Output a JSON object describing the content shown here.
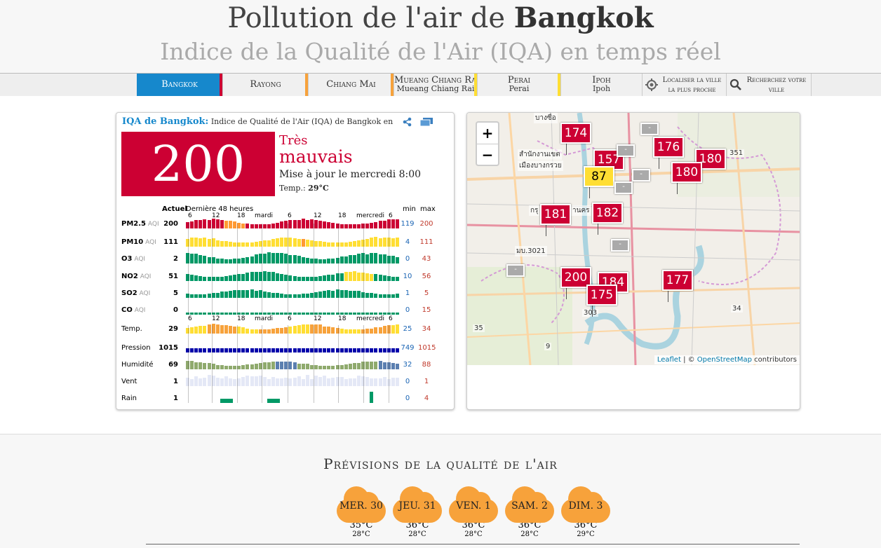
{
  "header": {
    "title_prefix": "Pollution de l'air de ",
    "title_city": "Bangkok",
    "subtitle": "Indice de la Qualité de l'Air (IQA) en temps réel"
  },
  "tabs": [
    {
      "label": "Bangkok",
      "sub": "",
      "color": "#cc0033",
      "active": true
    },
    {
      "label": "Rayong",
      "sub": "",
      "color": "#f7a23b",
      "active": false
    },
    {
      "label": "Chiang Mai",
      "sub": "",
      "color": "#f7a23b",
      "active": false
    },
    {
      "label": "Mueang Chiang Rai",
      "sub": "Mueang Chiang Rai",
      "color": "#ffde33",
      "active": false
    },
    {
      "label": "Perai",
      "sub": "Perai",
      "color": "#ffde33",
      "active": false
    },
    {
      "label": "Ipoh",
      "sub": "Ipoh",
      "color": "#ffde33",
      "active": false
    }
  ],
  "tools": {
    "locate_label": "Localiser la ville la plus proche",
    "search_label": "Recherchez votre ville"
  },
  "aqi": {
    "title_city": "IQA de Bangkok:",
    "title_rest": " Indice de Qualité de l'Air (IQA) de Bangkok en temps réel",
    "value": "200",
    "level_line1": "Très",
    "level_line2": "mauvais",
    "updated": "Mise à jour le mercredi 8:00",
    "temp_label": "Temp.:",
    "temp_value": "29°C",
    "color": "#cc0033"
  },
  "history": {
    "col_current": "Actuel",
    "col_range": "Dernière 48 heures",
    "col_min": "min",
    "col_max": "max",
    "hours": [
      "6",
      "12",
      "18",
      "mardi",
      "6",
      "12",
      "18",
      "mercredi",
      "6"
    ],
    "rows": [
      {
        "name": "PM2.5",
        "aqi": "AQI",
        "current": "200",
        "min": "119",
        "max": "200",
        "kind": "pm25"
      },
      {
        "name": "PM10",
        "aqi": "AQI",
        "current": "111",
        "min": "4",
        "max": "111",
        "kind": "pm10"
      },
      {
        "name": "O3",
        "aqi": "AQI",
        "current": "2",
        "min": "0",
        "max": "43",
        "kind": "o3"
      },
      {
        "name": "NO2",
        "aqi": "AQI",
        "current": "51",
        "min": "10",
        "max": "56",
        "kind": "no2"
      },
      {
        "name": "SO2",
        "aqi": "AQI",
        "current": "5",
        "min": "1",
        "max": "5",
        "kind": "so2"
      },
      {
        "name": "CO",
        "aqi": "AQI",
        "current": "0",
        "min": "0",
        "max": "15",
        "kind": "co"
      },
      {
        "name": "Temp.",
        "aqi": "",
        "current": "29",
        "min": "25",
        "max": "34",
        "kind": "temp"
      },
      {
        "name": "Pression",
        "aqi": "",
        "current": "1015",
        "min": "749",
        "max": "1015",
        "kind": "press"
      },
      {
        "name": "Humidité",
        "aqi": "",
        "current": "69",
        "min": "32",
        "max": "88",
        "kind": "hum"
      },
      {
        "name": "Vent",
        "aqi": "",
        "current": "1",
        "min": "0",
        "max": "1",
        "kind": "wind"
      },
      {
        "name": "Rain",
        "aqi": "",
        "current": "1",
        "min": "0",
        "max": "4",
        "kind": "rain"
      }
    ]
  },
  "map": {
    "zoom_in": "+",
    "zoom_out": "−",
    "attribution_leaflet": "Leaflet",
    "attribution_sep": " | © ",
    "attribution_osm": "OpenStreetMap",
    "attribution_rest": " contributors",
    "markers": [
      {
        "value": "174",
        "color": "red"
      },
      {
        "value": "157",
        "color": "red"
      },
      {
        "value": "87",
        "color": "yel"
      },
      {
        "value": "176",
        "color": "red"
      },
      {
        "value": "180",
        "color": "red"
      },
      {
        "value": "180",
        "color": "red"
      },
      {
        "value": "181",
        "color": "red"
      },
      {
        "value": "182",
        "color": "red"
      },
      {
        "value": "200",
        "color": "red"
      },
      {
        "value": "184",
        "color": "red"
      },
      {
        "value": "175",
        "color": "red"
      },
      {
        "value": "177",
        "color": "red"
      }
    ],
    "gray_markers": [
      "-",
      "-",
      "-",
      "-",
      "-",
      "-"
    ],
    "road_labels": [
      "บางซื่อ",
      "สำนักงานเขต",
      "เมืองบางกรวย",
      "กรุ",
      "านคร",
      "มบ.3021",
      "351",
      "35",
      "34",
      "303",
      "9"
    ]
  },
  "forecast": {
    "title": "Prévisions de la qualité de l'air",
    "days": [
      {
        "day": "MER. 30",
        "max": "35°C",
        "min": "28°C"
      },
      {
        "day": "JEU. 31",
        "max": "36°C",
        "min": "28°C"
      },
      {
        "day": "VEN. 1",
        "max": "36°C",
        "min": "28°C"
      },
      {
        "day": "SAM. 2",
        "max": "36°C",
        "min": "28°C"
      },
      {
        "day": "DIM. 3",
        "max": "36°C",
        "min": "29°C"
      }
    ]
  },
  "colors": {
    "accent": "#1688cc",
    "very_unhealthy": "#cc0033",
    "moderate": "#ffde33",
    "sensitive": "#ff9933",
    "good": "#009966"
  }
}
